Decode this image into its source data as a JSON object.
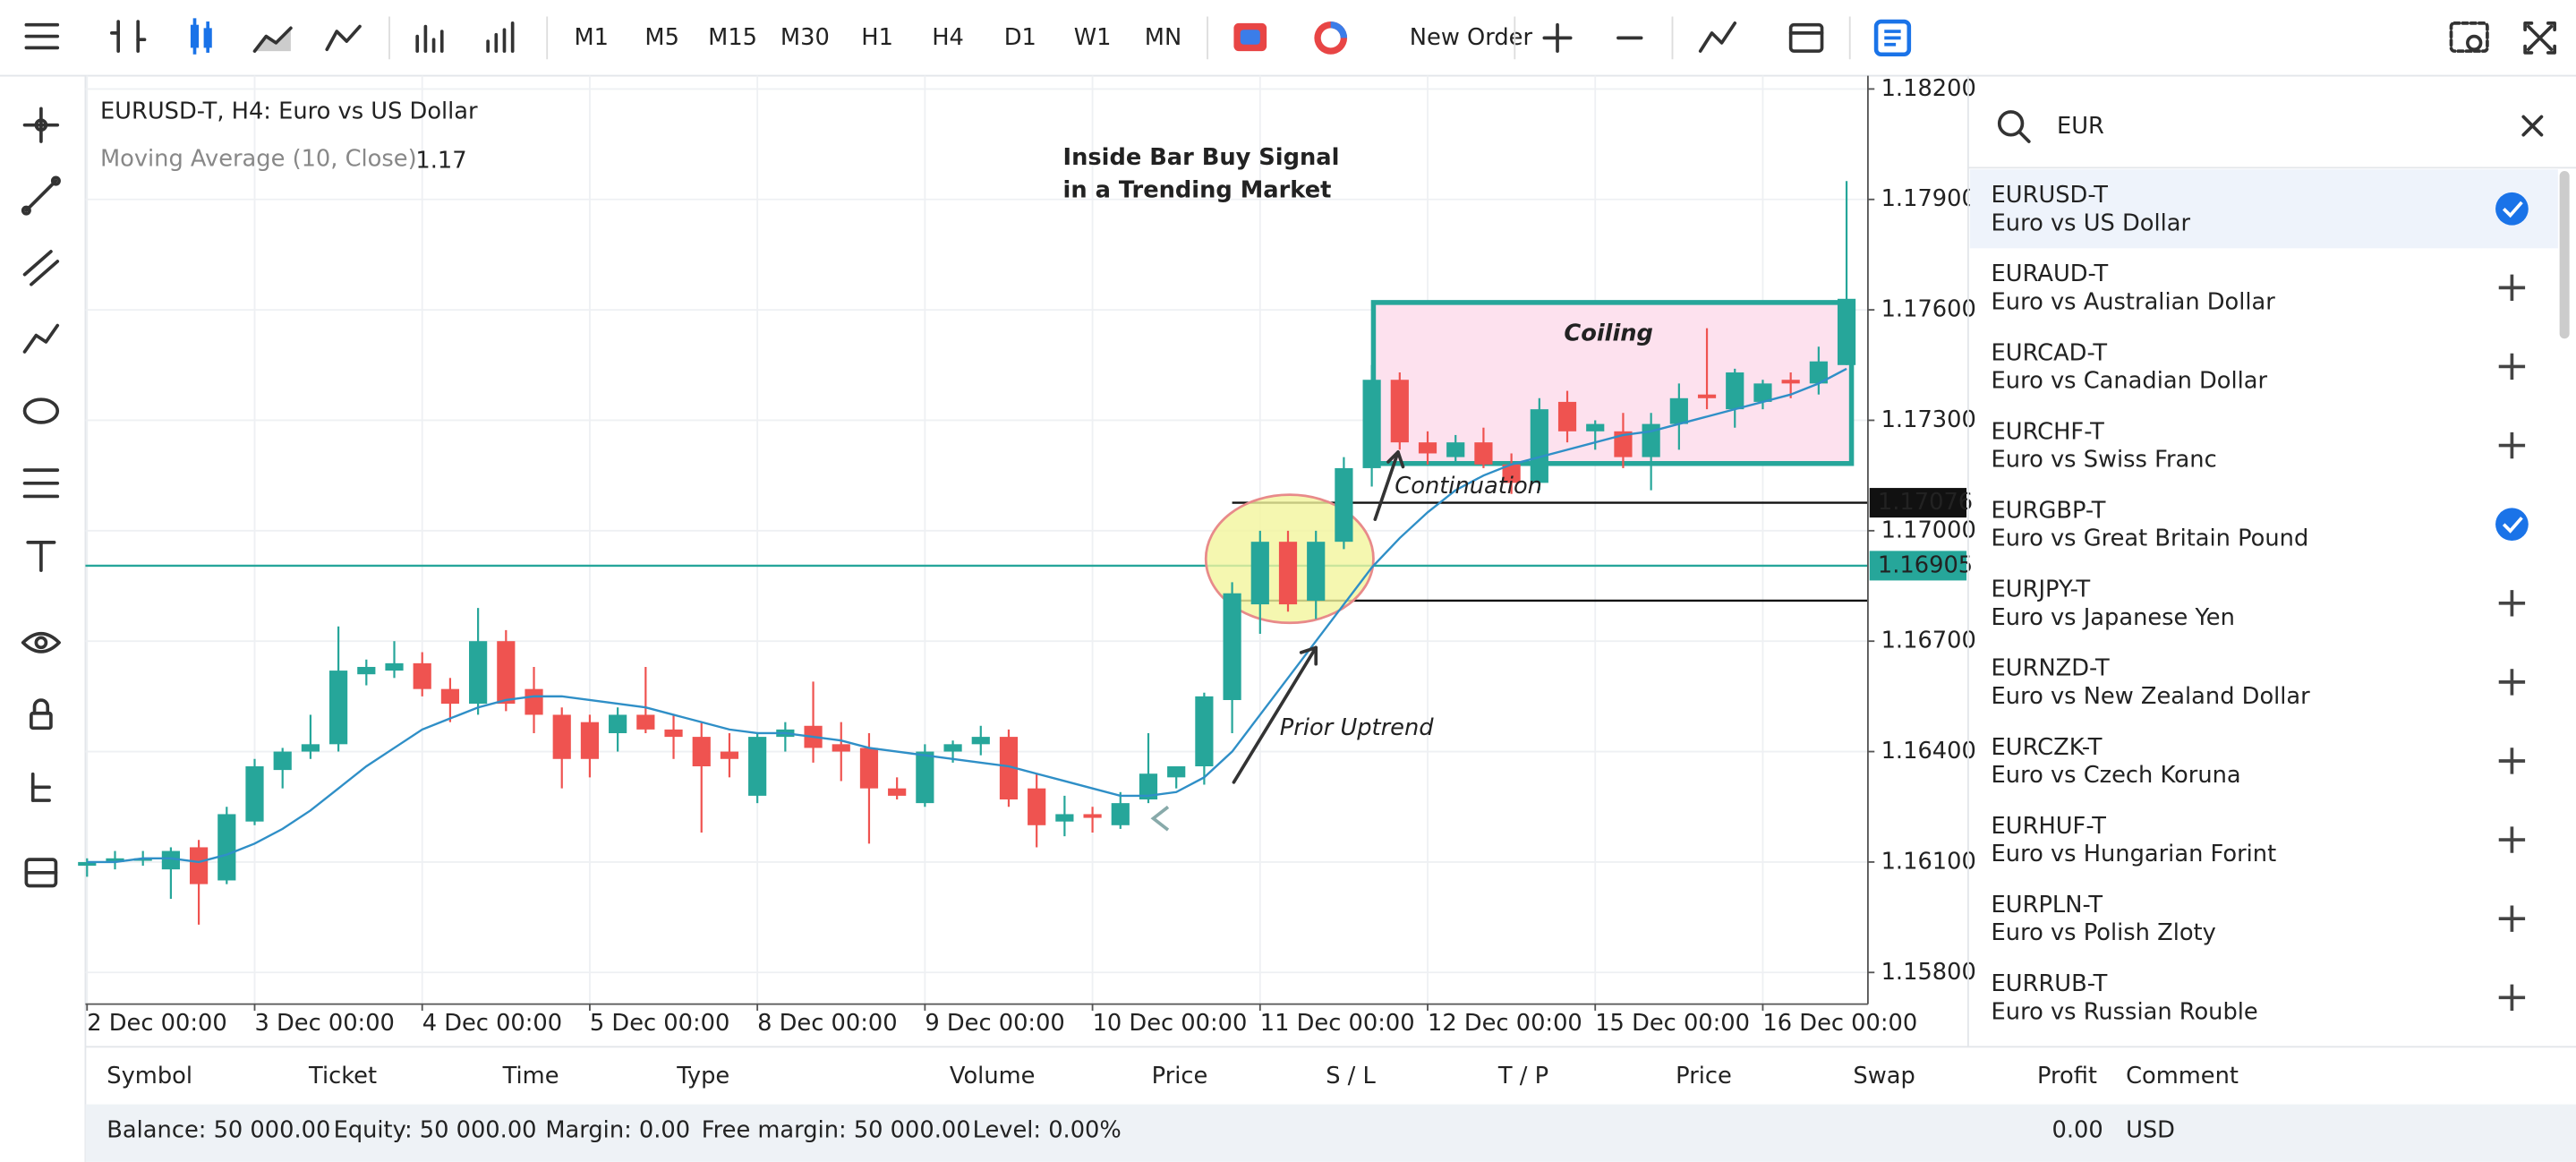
{
  "toolbar": {
    "timeframes": [
      "M1",
      "M5",
      "M15",
      "M30",
      "H1",
      "H4",
      "D1",
      "W1",
      "MN"
    ],
    "active_timeframe_index": 5,
    "new_order": "New Order"
  },
  "chart_data": {
    "type": "candlestick",
    "title": "EURUSD-T, H4: Euro vs US Dollar",
    "indicator": {
      "label": "Moving Average (10, Close)",
      "value": 1.17,
      "color": "#2f8fc7"
    },
    "up_color": "#26a69a",
    "down_color": "#ef5350",
    "candles": {
      "open": [
        1.1609,
        1.161,
        1.1611,
        1.1608,
        1.1614,
        1.1605,
        1.1621,
        1.1635,
        1.164,
        1.1642,
        1.1661,
        1.1662,
        1.1664,
        1.1657,
        1.1653,
        1.167,
        1.1657,
        1.165,
        1.1648,
        1.1645,
        1.165,
        1.1646,
        1.1644,
        1.164,
        1.1628,
        1.1644,
        1.1647,
        1.1642,
        1.1641,
        1.163,
        1.1626,
        1.164,
        1.1642,
        1.1644,
        1.163,
        1.1621,
        1.1623,
        1.162,
        1.1627,
        1.1633,
        1.1636,
        1.1654,
        1.168,
        1.1697,
        1.1681,
        1.1697,
        1.1717,
        1.1741,
        1.1724,
        1.172,
        1.1724,
        1.1718,
        1.1713,
        1.1735,
        1.1727,
        1.1727,
        1.172,
        1.1729,
        1.1737,
        1.1733,
        1.1735,
        1.1741,
        1.174,
        1.1745
      ],
      "high": [
        1.1611,
        1.1613,
        1.1613,
        1.1614,
        1.1616,
        1.1625,
        1.1638,
        1.1641,
        1.165,
        1.1674,
        1.1665,
        1.167,
        1.1667,
        1.166,
        1.1679,
        1.1673,
        1.1663,
        1.1652,
        1.165,
        1.1652,
        1.1663,
        1.165,
        1.1648,
        1.1645,
        1.1645,
        1.1648,
        1.1659,
        1.1648,
        1.1645,
        1.1633,
        1.1642,
        1.1643,
        1.1647,
        1.1646,
        1.1634,
        1.1628,
        1.1625,
        1.1629,
        1.1645,
        1.1636,
        1.1656,
        1.1686,
        1.17,
        1.17,
        1.17,
        1.172,
        1.1745,
        1.1743,
        1.1727,
        1.1726,
        1.1728,
        1.1721,
        1.1736,
        1.1738,
        1.173,
        1.1732,
        1.1732,
        1.174,
        1.1755,
        1.1744,
        1.1741,
        1.1743,
        1.175,
        1.1795
      ],
      "low": [
        1.1606,
        1.1608,
        1.1609,
        1.16,
        1.1593,
        1.1604,
        1.162,
        1.163,
        1.1638,
        1.164,
        1.1658,
        1.166,
        1.1655,
        1.1648,
        1.165,
        1.1651,
        1.1645,
        1.163,
        1.1633,
        1.164,
        1.1645,
        1.1638,
        1.1618,
        1.1633,
        1.1626,
        1.164,
        1.1637,
        1.1632,
        1.1615,
        1.1627,
        1.1625,
        1.1637,
        1.1639,
        1.1625,
        1.1614,
        1.1617,
        1.1618,
        1.1619,
        1.1626,
        1.163,
        1.1631,
        1.1645,
        1.1672,
        1.1678,
        1.1676,
        1.1695,
        1.1712,
        1.1722,
        1.1718,
        1.1718,
        1.1717,
        1.171,
        1.1711,
        1.1724,
        1.1722,
        1.1717,
        1.1711,
        1.1722,
        1.1733,
        1.1728,
        1.1733,
        1.1736,
        1.1737,
        1.1745
      ],
      "close": [
        1.161,
        1.1611,
        1.1611,
        1.1613,
        1.1604,
        1.1623,
        1.1636,
        1.164,
        1.1642,
        1.1662,
        1.1663,
        1.1664,
        1.1657,
        1.1653,
        1.167,
        1.1653,
        1.165,
        1.1638,
        1.1638,
        1.165,
        1.1646,
        1.1644,
        1.1636,
        1.1638,
        1.1644,
        1.1646,
        1.1641,
        1.164,
        1.163,
        1.1628,
        1.164,
        1.1642,
        1.1644,
        1.1627,
        1.162,
        1.1623,
        1.1622,
        1.1626,
        1.1634,
        1.1636,
        1.1655,
        1.1683,
        1.1697,
        1.168,
        1.1697,
        1.1717,
        1.1741,
        1.1724,
        1.1721,
        1.1724,
        1.1718,
        1.1713,
        1.1733,
        1.1727,
        1.1729,
        1.172,
        1.1729,
        1.1736,
        1.1736,
        1.1743,
        1.174,
        1.174,
        1.1746,
        1.1763
      ]
    },
    "ma": [
      1.161,
      1.161,
      1.1611,
      1.1611,
      1.161,
      1.1612,
      1.1615,
      1.1619,
      1.1624,
      1.163,
      1.1636,
      1.1641,
      1.1646,
      1.1649,
      1.1652,
      1.1654,
      1.1655,
      1.1655,
      1.1654,
      1.1653,
      1.1652,
      1.165,
      1.1648,
      1.1646,
      1.1645,
      1.1645,
      1.1644,
      1.1643,
      1.1641,
      1.164,
      1.1639,
      1.1638,
      1.1637,
      1.1636,
      1.1634,
      1.1632,
      1.163,
      1.1628,
      1.1628,
      1.1629,
      1.1633,
      1.164,
      1.165,
      1.166,
      1.167,
      1.168,
      1.169,
      1.1698,
      1.1705,
      1.1711,
      1.1715,
      1.1718,
      1.172,
      1.1722,
      1.1724,
      1.1726,
      1.1727,
      1.1729,
      1.1731,
      1.1733,
      1.1735,
      1.1737,
      1.174,
      1.1744
    ],
    "ylim": [
      1.15714,
      1.18236
    ],
    "yticks": [
      {
        "value": 1.158,
        "label": "1.15800"
      },
      {
        "value": 1.161,
        "label": "1.16100"
      },
      {
        "value": 1.164,
        "label": "1.16400"
      },
      {
        "value": 1.167,
        "label": "1.16700"
      },
      {
        "value": 1.17,
        "label": "1.17000"
      },
      {
        "value": 1.173,
        "label": "1.17300"
      },
      {
        "value": 1.176,
        "label": "1.17600"
      },
      {
        "value": 1.179,
        "label": "1.17900"
      },
      {
        "value": 1.182,
        "label": "1.18200"
      }
    ],
    "xticks": [
      {
        "value": 0,
        "label": "2 Dec 00:00"
      },
      {
        "value": 6,
        "label": "3 Dec 00:00"
      },
      {
        "value": 12,
        "label": "4 Dec 00:00"
      },
      {
        "value": 18,
        "label": "5 Dec 00:00"
      },
      {
        "value": 24,
        "label": "8 Dec 00:00"
      },
      {
        "value": 30,
        "label": "9 Dec 00:00"
      },
      {
        "value": 36,
        "label": "10 Dec 00:00"
      },
      {
        "value": 42,
        "label": "11 Dec 00:00"
      },
      {
        "value": 48,
        "label": "12 Dec 00:00"
      },
      {
        "value": 54,
        "label": "15 Dec 00:00"
      },
      {
        "value": 60,
        "label": "16 Dec 00:00"
      }
    ],
    "grid": true,
    "price_lines": [
      {
        "value": 1.17076,
        "color": "#111111"
      },
      {
        "value": 1.16905,
        "color": "#26a69a"
      }
    ],
    "range_line": 1.1681,
    "annotations": {
      "headline": [
        "Inside Bar Buy Signal",
        "in a Trending Market"
      ],
      "coiling": "Coiling",
      "continuation": "Continuation",
      "prior_uptrend": "Prior Uptrend"
    }
  },
  "search": "EUR",
  "symbols": [
    {
      "name": "EURUSD-T",
      "description": "Euro vs US Dollar",
      "selected": true
    },
    {
      "name": "EURAUD-T",
      "description": "Euro vs Australian Dollar",
      "selected": false
    },
    {
      "name": "EURCAD-T",
      "description": "Euro vs Canadian Dollar",
      "selected": false
    },
    {
      "name": "EURCHF-T",
      "description": "Euro vs Swiss Franc",
      "selected": false
    },
    {
      "name": "EURGBP-T",
      "description": "Euro vs Great Britain Pound",
      "selected": true
    },
    {
      "name": "EURJPY-T",
      "description": "Euro vs Japanese Yen",
      "selected": false
    },
    {
      "name": "EURNZD-T",
      "description": "Euro vs New Zealand Dollar",
      "selected": false
    },
    {
      "name": "EURCZK-T",
      "description": "Euro vs Czech Koruna",
      "selected": false
    },
    {
      "name": "EURHUF-T",
      "description": "Euro vs Hungarian Forint",
      "selected": false
    },
    {
      "name": "EURPLN-T",
      "description": "Euro vs Polish Zloty",
      "selected": false
    },
    {
      "name": "EURRUB-T",
      "description": "Euro vs Russian Rouble",
      "selected": false
    }
  ],
  "positions_table": {
    "headers": [
      "Symbol",
      "Ticket",
      "Time",
      "Type",
      "Volume",
      "Price",
      "S / L",
      "T / P",
      "Price",
      "Swap",
      "Profit",
      "Comment"
    ]
  },
  "account": {
    "balance": "Balance: 50 000.00",
    "equity": "Equity: 50 000.00",
    "margin": "Margin: 0.00",
    "free_margin": "Free margin: 50 000.00",
    "level": "Level: 0.00%",
    "profit": "0.00",
    "currency": "USD"
  }
}
